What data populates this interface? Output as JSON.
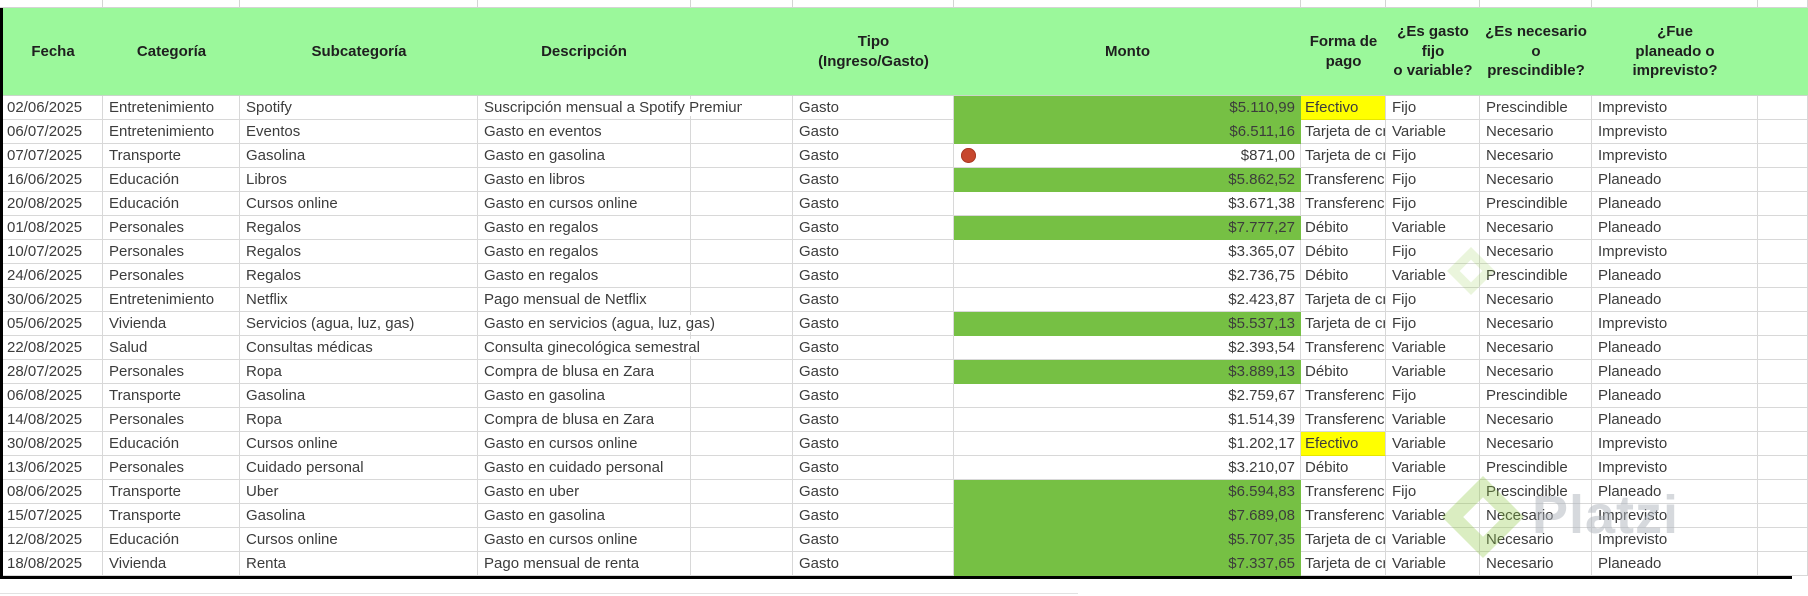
{
  "app": {
    "type": "spreadsheet-expense-tracker",
    "language": "es"
  },
  "header": {
    "columns": [
      "Fecha",
      "Categoría",
      "Subcategoría",
      "Descripción",
      "Tipo\n(Ingreso/Gasto)",
      "Monto",
      "Forma de\npago",
      "¿Es gasto fijo\no variable?",
      "¿Es necesario\no\nprescindible?",
      "¿Fue\nplaneado o\nimprevisto?"
    ]
  },
  "rows": [
    {
      "fecha": "02/06/2025",
      "categoria": "Entretenimiento",
      "subcategoria": "Spotify",
      "descripcion": "Suscripción mensual a Spotify Premium",
      "tipo": "Gasto",
      "monto": "$5.110,99",
      "monto_resaltado": true,
      "icono_alerta": false,
      "forma_pago": "Efectivo",
      "forma_pago_resaltada": true,
      "fijo_variable": "Fijo",
      "necesario_prescindible": "Prescindible",
      "planeado_imprevisto": "Imprevisto"
    },
    {
      "fecha": "06/07/2025",
      "categoria": "Entretenimiento",
      "subcategoria": "Eventos",
      "descripcion": "Gasto en eventos",
      "tipo": "Gasto",
      "monto": "$6.511,16",
      "monto_resaltado": true,
      "icono_alerta": false,
      "forma_pago": "Tarjeta de crédito",
      "forma_pago_resaltada": false,
      "fijo_variable": "Variable",
      "necesario_prescindible": "Necesario",
      "planeado_imprevisto": "Imprevisto"
    },
    {
      "fecha": "07/07/2025",
      "categoria": "Transporte",
      "subcategoria": "Gasolina",
      "descripcion": "Gasto en gasolina",
      "tipo": "Gasto",
      "monto": "$871,00",
      "monto_resaltado": false,
      "icono_alerta": true,
      "forma_pago": "Tarjeta de crédito",
      "forma_pago_resaltada": false,
      "fijo_variable": "Fijo",
      "necesario_prescindible": "Necesario",
      "planeado_imprevisto": "Imprevisto"
    },
    {
      "fecha": "16/06/2025",
      "categoria": "Educación",
      "subcategoria": "Libros",
      "descripcion": "Gasto en libros",
      "tipo": "Gasto",
      "monto": "$5.862,52",
      "monto_resaltado": true,
      "icono_alerta": false,
      "forma_pago": "Transferencia",
      "forma_pago_resaltada": false,
      "fijo_variable": "Fijo",
      "necesario_prescindible": "Necesario",
      "planeado_imprevisto": "Planeado"
    },
    {
      "fecha": "20/08/2025",
      "categoria": "Educación",
      "subcategoria": "Cursos online",
      "descripcion": "Gasto en cursos online",
      "tipo": "Gasto",
      "monto": "$3.671,38",
      "monto_resaltado": false,
      "icono_alerta": false,
      "forma_pago": "Transferencia",
      "forma_pago_resaltada": false,
      "fijo_variable": "Fijo",
      "necesario_prescindible": "Prescindible",
      "planeado_imprevisto": "Planeado"
    },
    {
      "fecha": "01/08/2025",
      "categoria": "Personales",
      "subcategoria": "Regalos",
      "descripcion": "Gasto en regalos",
      "tipo": "Gasto",
      "monto": "$7.777,27",
      "monto_resaltado": true,
      "icono_alerta": false,
      "forma_pago": "Débito",
      "forma_pago_resaltada": false,
      "fijo_variable": "Variable",
      "necesario_prescindible": "Necesario",
      "planeado_imprevisto": "Planeado"
    },
    {
      "fecha": "10/07/2025",
      "categoria": "Personales",
      "subcategoria": "Regalos",
      "descripcion": "Gasto en regalos",
      "tipo": "Gasto",
      "monto": "$3.365,07",
      "monto_resaltado": false,
      "icono_alerta": false,
      "forma_pago": "Débito",
      "forma_pago_resaltada": false,
      "fijo_variable": "Fijo",
      "necesario_prescindible": "Necesario",
      "planeado_imprevisto": "Imprevisto"
    },
    {
      "fecha": "24/06/2025",
      "categoria": "Personales",
      "subcategoria": "Regalos",
      "descripcion": "Gasto en regalos",
      "tipo": "Gasto",
      "monto": "$2.736,75",
      "monto_resaltado": false,
      "icono_alerta": false,
      "forma_pago": "Débito",
      "forma_pago_resaltada": false,
      "fijo_variable": "Variable",
      "necesario_prescindible": "Prescindible",
      "planeado_imprevisto": "Planeado"
    },
    {
      "fecha": "30/06/2025",
      "categoria": "Entretenimiento",
      "subcategoria": "Netflix",
      "descripcion": "Pago mensual de Netflix",
      "tipo": "Gasto",
      "monto": "$2.423,87",
      "monto_resaltado": false,
      "icono_alerta": false,
      "forma_pago": "Tarjeta de crédito",
      "forma_pago_resaltada": false,
      "fijo_variable": "Fijo",
      "necesario_prescindible": "Necesario",
      "planeado_imprevisto": "Planeado"
    },
    {
      "fecha": "05/06/2025",
      "categoria": "Vivienda",
      "subcategoria": "Servicios (agua, luz, gas)",
      "descripcion": "Gasto en servicios (agua, luz, gas)",
      "tipo": "Gasto",
      "monto": "$5.537,13",
      "monto_resaltado": true,
      "icono_alerta": false,
      "forma_pago": "Tarjeta de crédito",
      "forma_pago_resaltada": false,
      "fijo_variable": "Fijo",
      "necesario_prescindible": "Necesario",
      "planeado_imprevisto": "Imprevisto"
    },
    {
      "fecha": "22/08/2025",
      "categoria": "Salud",
      "subcategoria": "Consultas médicas",
      "descripcion": "Consulta ginecológica semestral",
      "tipo": "Gasto",
      "monto": "$2.393,54",
      "monto_resaltado": false,
      "icono_alerta": false,
      "forma_pago": "Transferencia",
      "forma_pago_resaltada": false,
      "fijo_variable": "Variable",
      "necesario_prescindible": "Necesario",
      "planeado_imprevisto": "Planeado"
    },
    {
      "fecha": "28/07/2025",
      "categoria": "Personales",
      "subcategoria": "Ropa",
      "descripcion": "Compra de blusa en Zara",
      "tipo": "Gasto",
      "monto": "$3.889,13",
      "monto_resaltado": true,
      "icono_alerta": false,
      "forma_pago": "Débito",
      "forma_pago_resaltada": false,
      "fijo_variable": "Variable",
      "necesario_prescindible": "Necesario",
      "planeado_imprevisto": "Planeado"
    },
    {
      "fecha": "06/08/2025",
      "categoria": "Transporte",
      "subcategoria": "Gasolina",
      "descripcion": "Gasto en gasolina",
      "tipo": "Gasto",
      "monto": "$2.759,67",
      "monto_resaltado": false,
      "icono_alerta": false,
      "forma_pago": "Transferencia",
      "forma_pago_resaltada": false,
      "fijo_variable": "Fijo",
      "necesario_prescindible": "Prescindible",
      "planeado_imprevisto": "Planeado"
    },
    {
      "fecha": "14/08/2025",
      "categoria": "Personales",
      "subcategoria": "Ropa",
      "descripcion": "Compra de blusa en Zara",
      "tipo": "Gasto",
      "monto": "$1.514,39",
      "monto_resaltado": false,
      "icono_alerta": false,
      "forma_pago": "Transferencia",
      "forma_pago_resaltada": false,
      "fijo_variable": "Variable",
      "necesario_prescindible": "Necesario",
      "planeado_imprevisto": "Planeado"
    },
    {
      "fecha": "30/08/2025",
      "categoria": "Educación",
      "subcategoria": "Cursos online",
      "descripcion": "Gasto en cursos online",
      "tipo": "Gasto",
      "monto": "$1.202,17",
      "monto_resaltado": false,
      "icono_alerta": false,
      "forma_pago": "Efectivo",
      "forma_pago_resaltada": true,
      "fijo_variable": "Variable",
      "necesario_prescindible": "Necesario",
      "planeado_imprevisto": "Imprevisto"
    },
    {
      "fecha": "13/06/2025",
      "categoria": "Personales",
      "subcategoria": "Cuidado personal",
      "descripcion": "Gasto en cuidado personal",
      "tipo": "Gasto",
      "monto": "$3.210,07",
      "monto_resaltado": false,
      "icono_alerta": false,
      "forma_pago": "Débito",
      "forma_pago_resaltada": false,
      "fijo_variable": "Variable",
      "necesario_prescindible": "Prescindible",
      "planeado_imprevisto": "Imprevisto"
    },
    {
      "fecha": "08/06/2025",
      "categoria": "Transporte",
      "subcategoria": "Uber",
      "descripcion": "Gasto en uber",
      "tipo": "Gasto",
      "monto": "$6.594,83",
      "monto_resaltado": true,
      "icono_alerta": false,
      "forma_pago": "Transferencia",
      "forma_pago_resaltada": false,
      "fijo_variable": "Fijo",
      "necesario_prescindible": "Prescindible",
      "planeado_imprevisto": "Planeado"
    },
    {
      "fecha": "15/07/2025",
      "categoria": "Transporte",
      "subcategoria": "Gasolina",
      "descripcion": "Gasto en gasolina",
      "tipo": "Gasto",
      "monto": "$7.689,08",
      "monto_resaltado": true,
      "icono_alerta": false,
      "forma_pago": "Transferencia",
      "forma_pago_resaltada": false,
      "fijo_variable": "Variable",
      "necesario_prescindible": "Necesario",
      "planeado_imprevisto": "Imprevisto"
    },
    {
      "fecha": "12/08/2025",
      "categoria": "Educación",
      "subcategoria": "Cursos online",
      "descripcion": "Gasto en cursos online",
      "tipo": "Gasto",
      "monto": "$5.707,35",
      "monto_resaltado": true,
      "icono_alerta": false,
      "forma_pago": "Tarjeta de crédito",
      "forma_pago_resaltada": false,
      "fijo_variable": "Variable",
      "necesario_prescindible": "Necesario",
      "planeado_imprevisto": "Imprevisto"
    },
    {
      "fecha": "18/08/2025",
      "categoria": "Vivienda",
      "subcategoria": "Renta",
      "descripcion": "Pago mensual de renta",
      "tipo": "Gasto",
      "monto": "$7.337,65",
      "monto_resaltado": true,
      "icono_alerta": false,
      "forma_pago": "Tarjeta de crédito",
      "forma_pago_resaltada": false,
      "fijo_variable": "Variable",
      "necesario_prescindible": "Necesario",
      "planeado_imprevisto": "Planeado"
    }
  ],
  "icons": {
    "alert_icon": "red-circle",
    "watermark_icon": "green-diamond"
  },
  "watermark": {
    "text": "Platzi"
  },
  "colors": {
    "header_bg": "#9BF89B",
    "highlight_green": "#76C044",
    "highlight_yellow": "#FFFF00",
    "alert_red": "#C7472E",
    "watermark_green": "#8CC63F",
    "gridline": "#D8D8D8",
    "table_border": "#000000"
  }
}
